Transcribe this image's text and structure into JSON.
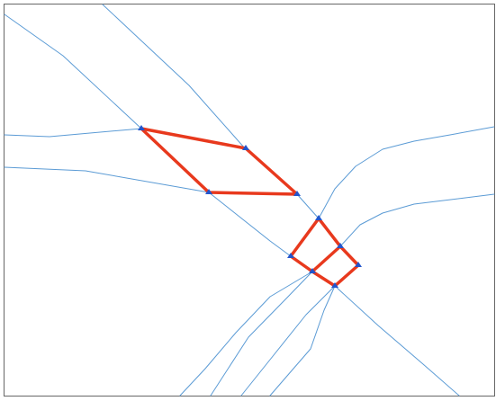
{
  "colors": {
    "background": "#ffffff",
    "frame": "#666666",
    "road": "#5b9bd5",
    "route": "#e8391d",
    "node": "#2255cc"
  }
}
